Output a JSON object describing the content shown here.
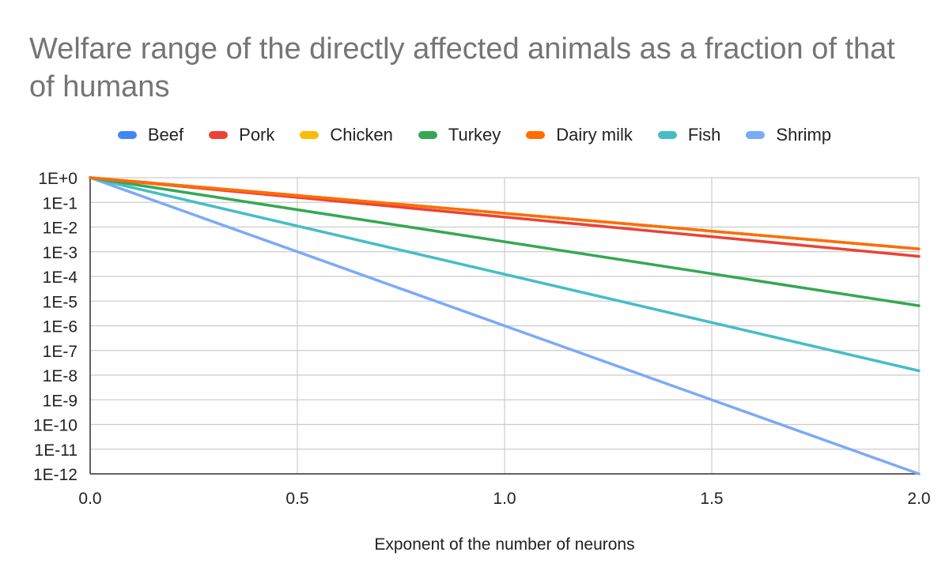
{
  "chart_data": {
    "type": "line",
    "title": "Welfare range of the directly affected animals as a fraction of that of humans",
    "xlabel": "Exponent of the number of neurons",
    "ylabel": "",
    "y_scale": "log",
    "xlim": [
      0,
      2
    ],
    "ylim": [
      1e-12,
      1
    ],
    "x_ticks": [
      "0.0",
      "0.5",
      "1.0",
      "1.5",
      "2.0"
    ],
    "y_ticks": [
      "1E+0",
      "1E-1",
      "1E-2",
      "1E-3",
      "1E-4",
      "1E-5",
      "1E-6",
      "1E-7",
      "1E-8",
      "1E-9",
      "1E-10",
      "1E-11",
      "1E-12"
    ],
    "grid": true,
    "legend_position": "top",
    "x": [
      0,
      2
    ],
    "series": [
      {
        "name": "Beef",
        "color": "#4285F4",
        "values": [
          1,
          0.0013
        ]
      },
      {
        "name": "Pork",
        "color": "#EA4335",
        "values": [
          1,
          0.00065
        ]
      },
      {
        "name": "Chicken",
        "color": "#FBBC04",
        "values": [
          1,
          0.0013
        ]
      },
      {
        "name": "Turkey",
        "color": "#34A853",
        "values": [
          1,
          6.5e-06
        ]
      },
      {
        "name": "Dairy milk",
        "color": "#FF6D01",
        "values": [
          1,
          0.0013
        ]
      },
      {
        "name": "Fish",
        "color": "#46BDC6",
        "values": [
          1,
          1.5e-08
        ]
      },
      {
        "name": "Shrimp",
        "color": "#7BAAF7",
        "values": [
          1,
          1e-12
        ]
      }
    ]
  }
}
